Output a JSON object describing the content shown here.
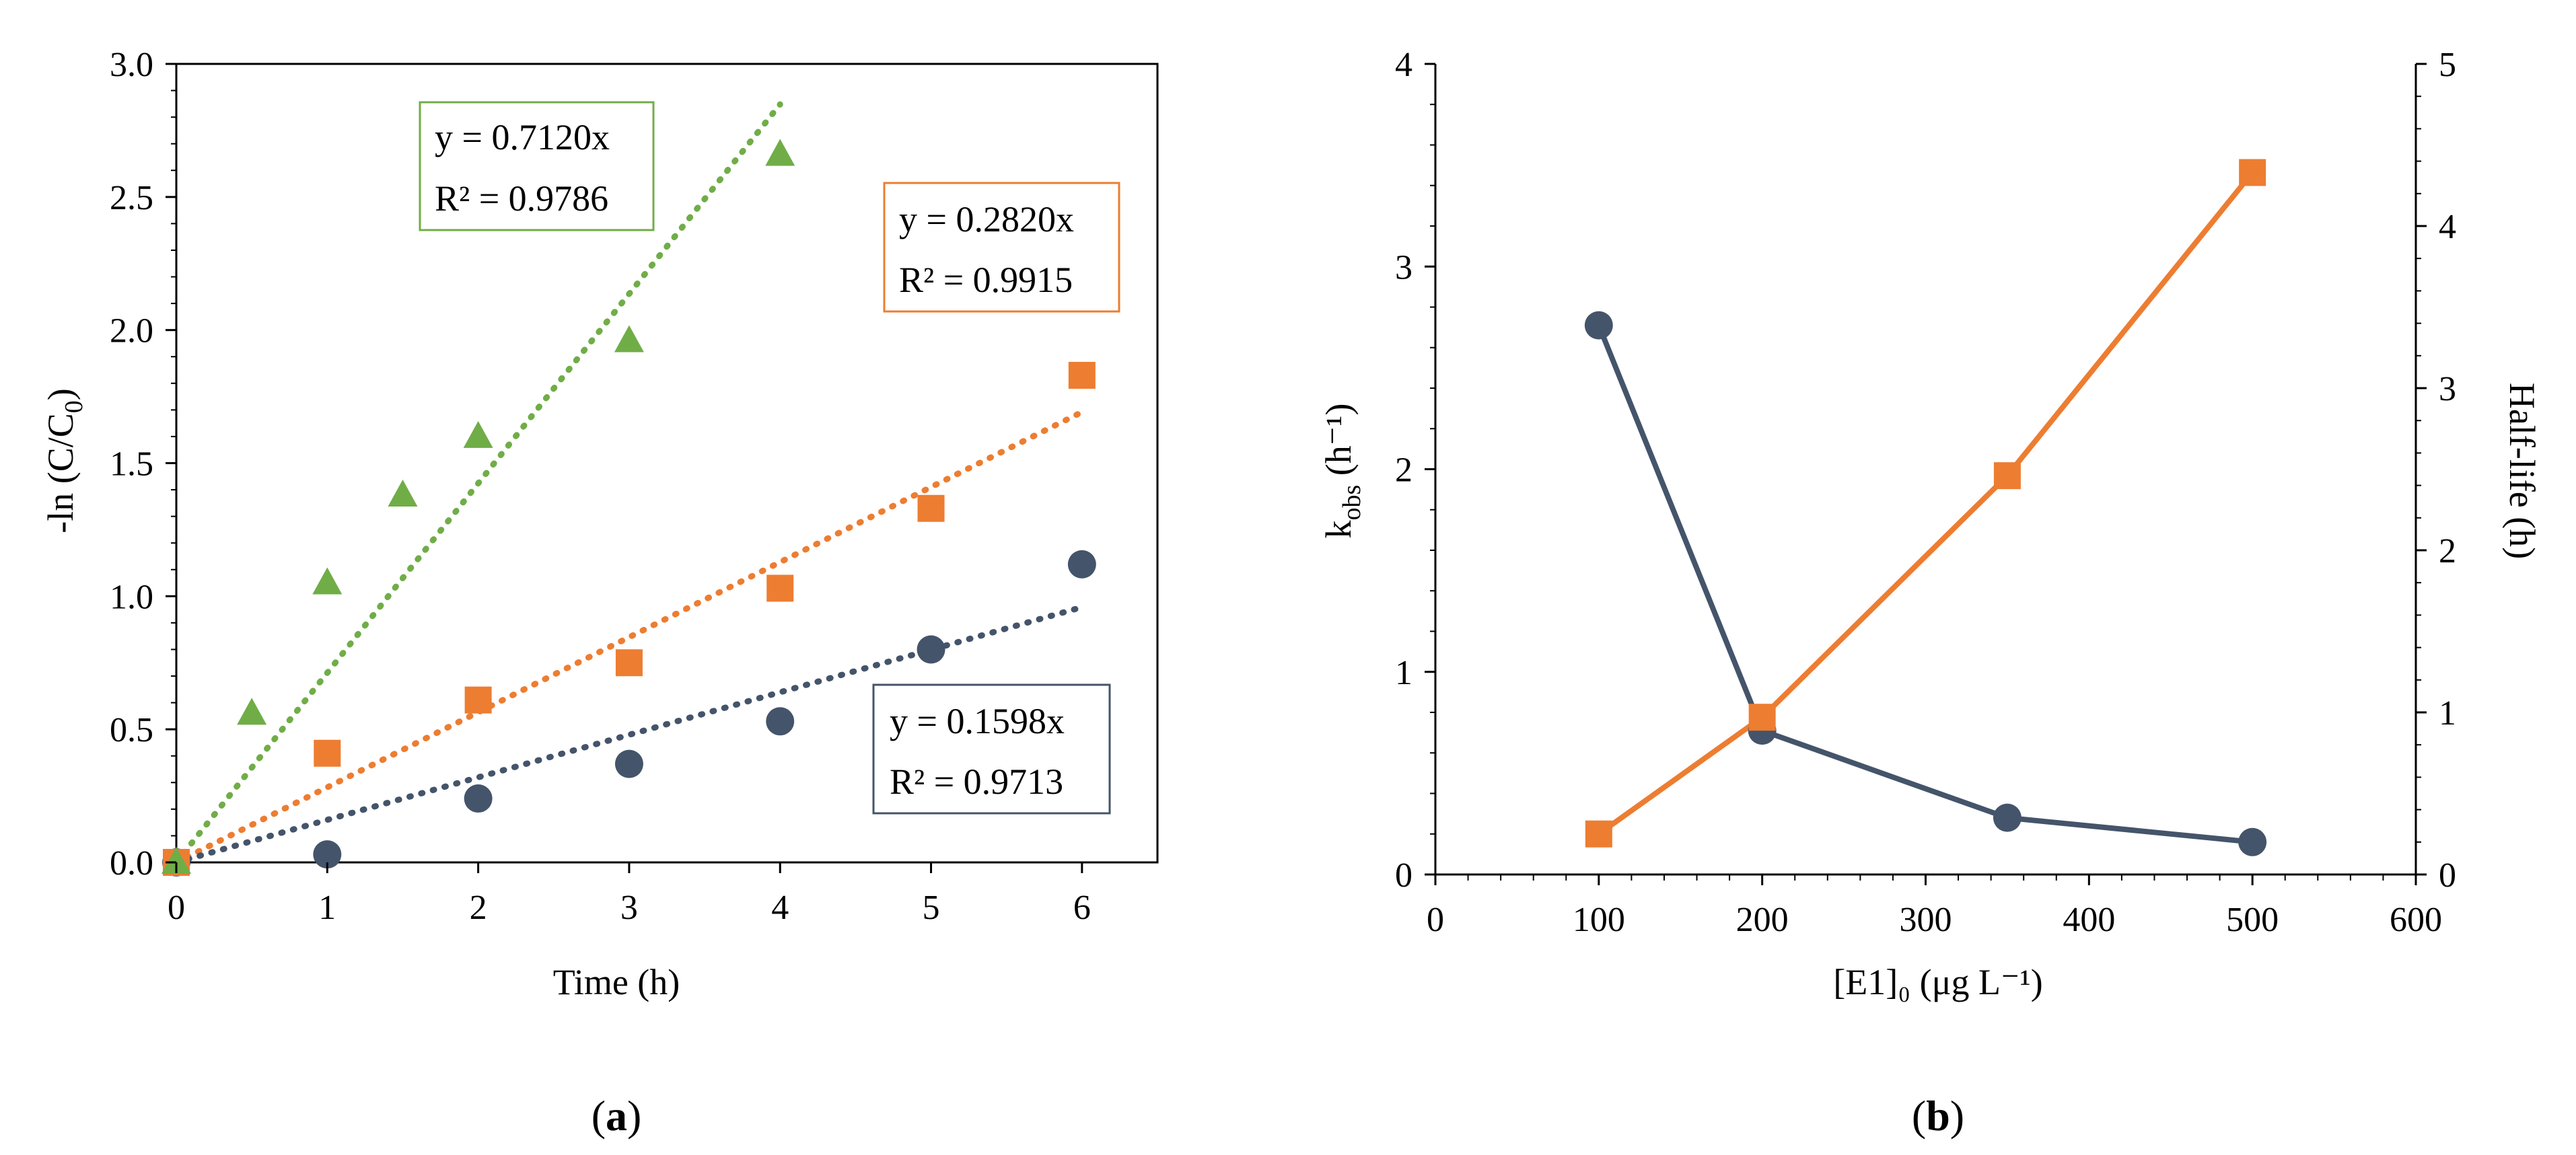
{
  "chart_data": [
    {
      "type": "scatter",
      "panel_label": "a",
      "xlabel": "Time (h)",
      "ylabel_prefix": "-ln (C/C",
      "ylabel_sub": "0",
      "ylabel_suffix": ")",
      "xlim": [
        0,
        6.5
      ],
      "ylim": [
        0,
        3.0
      ],
      "xticks": [
        0,
        1,
        2,
        3,
        4,
        5,
        6
      ],
      "yticks": [
        "0.0",
        "0.5",
        "1.0",
        "1.5",
        "2.0",
        "2.5",
        "3.0"
      ],
      "series": [
        {
          "name": "green",
          "marker": "triangle",
          "color": "#70AD47",
          "x": [
            0,
            0.5,
            1,
            1.5,
            2,
            3,
            4
          ],
          "y": [
            0,
            0.56,
            1.05,
            1.38,
            1.6,
            1.96,
            2.66
          ],
          "trend_slope": 0.712,
          "trend_x_end": 4,
          "equation": "y = 0.7120x",
          "r2": "R² = 0.9786"
        },
        {
          "name": "orange",
          "marker": "square",
          "color": "#ED7D31",
          "x": [
            0,
            1,
            2,
            3,
            4,
            5,
            6
          ],
          "y": [
            0,
            0.41,
            0.61,
            0.75,
            1.03,
            1.33,
            1.83
          ],
          "trend_slope": 0.282,
          "trend_x_end": 6,
          "equation": "y = 0.2820x",
          "r2": "R² = 0.9915"
        },
        {
          "name": "navy",
          "marker": "circle",
          "color": "#44546A",
          "x": [
            0,
            1,
            2,
            3,
            4,
            5,
            6
          ],
          "y": [
            0,
            0.03,
            0.24,
            0.37,
            0.53,
            0.8,
            1.12
          ],
          "trend_slope": 0.1598,
          "trend_x_end": 6,
          "equation": "y = 0.1598x",
          "r2": "R² = 0.9713"
        }
      ]
    },
    {
      "type": "line",
      "panel_label": "b",
      "xlabel": "[E1]₀ (μg L⁻¹)",
      "ylabel_left_prefix": "k",
      "ylabel_left_sub": "obs",
      "ylabel_left_suffix": " (h⁻¹)",
      "ylabel_right": "Half-life (h)",
      "xlim": [
        0,
        600
      ],
      "ylim_left": [
        0,
        4
      ],
      "ylim_right": [
        0,
        5
      ],
      "xticks": [
        0,
        100,
        200,
        300,
        400,
        500,
        600
      ],
      "yticks_left": [
        0,
        1,
        2,
        3,
        4
      ],
      "yticks_right": [
        0,
        1,
        2,
        3,
        4,
        5
      ],
      "series": [
        {
          "name": "k_obs",
          "axis": "left",
          "marker": "circle",
          "color": "#44546A",
          "x": [
            100,
            200,
            350,
            500
          ],
          "y": [
            2.71,
            0.71,
            0.28,
            0.16
          ]
        },
        {
          "name": "half_life",
          "axis": "right",
          "marker": "square",
          "color": "#ED7D31",
          "x": [
            100,
            200,
            350,
            500
          ],
          "y": [
            0.25,
            0.97,
            2.46,
            4.33
          ]
        }
      ]
    }
  ]
}
